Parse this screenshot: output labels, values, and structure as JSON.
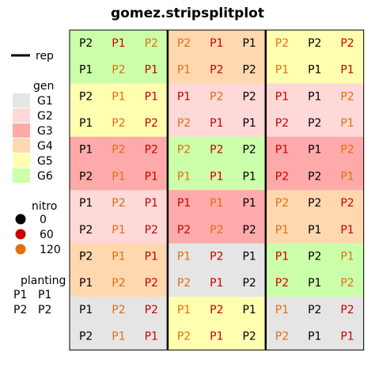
{
  "chart_data": {
    "type": "heatmap",
    "title": "gomez.stripsplitplot",
    "rep_blocks": 3,
    "rows": 12,
    "cols": 9,
    "row_gen": [
      "G6",
      "G6",
      "G5",
      "G5",
      "G3",
      "G3",
      "G2",
      "G2",
      "G4",
      "G4",
      "G1",
      "G1"
    ],
    "col_gen": [
      [
        "G6",
        "G6",
        "G6",
        "G4",
        "G4",
        "G4",
        "G5",
        "G5",
        "G5"
      ],
      [
        "G6",
        "G6",
        "G6",
        "G4",
        "G4",
        "G4",
        "G5",
        "G5",
        "G5"
      ],
      [
        "G5",
        "G5",
        "G5",
        "G2",
        "G2",
        "G2",
        "G2",
        "G2",
        "G2"
      ],
      [
        "G5",
        "G5",
        "G5",
        "G2",
        "G2",
        "G2",
        "G2",
        "G2",
        "G2"
      ],
      [
        "G3",
        "G3",
        "G3",
        "G6",
        "G6",
        "G6",
        "G3",
        "G3",
        "G3"
      ],
      [
        "G3",
        "G3",
        "G3",
        "G6",
        "G6",
        "G6",
        "G3",
        "G3",
        "G3"
      ],
      [
        "G2",
        "G2",
        "G2",
        "G3",
        "G3",
        "G3",
        "G4",
        "G4",
        "G4"
      ],
      [
        "G2",
        "G2",
        "G2",
        "G3",
        "G3",
        "G3",
        "G4",
        "G4",
        "G4"
      ],
      [
        "G4",
        "G4",
        "G4",
        "G1",
        "G1",
        "G1",
        "G6",
        "G6",
        "G6"
      ],
      [
        "G4",
        "G4",
        "G4",
        "G1",
        "G1",
        "G1",
        "G6",
        "G6",
        "G6"
      ],
      [
        "G1",
        "G1",
        "G1",
        "G5",
        "G5",
        "G5",
        "G1",
        "G1",
        "G1"
      ],
      [
        "G1",
        "G1",
        "G1",
        "G5",
        "G5",
        "G5",
        "G1",
        "G1",
        "G1"
      ]
    ],
    "planting": [
      [
        "P2",
        "P1",
        "P2",
        "P2",
        "P1",
        "P1",
        "P2",
        "P2",
        "P2"
      ],
      [
        "P1",
        "P2",
        "P1",
        "P1",
        "P2",
        "P2",
        "P1",
        "P1",
        "P1"
      ],
      [
        "P2",
        "P1",
        "P1",
        "P1",
        "P2",
        "P2",
        "P1",
        "P1",
        "P2"
      ],
      [
        "P1",
        "P2",
        "P2",
        "P2",
        "P1",
        "P1",
        "P2",
        "P2",
        "P1"
      ],
      [
        "P1",
        "P2",
        "P2",
        "P2",
        "P2",
        "P2",
        "P1",
        "P1",
        "P2"
      ],
      [
        "P2",
        "P1",
        "P1",
        "P1",
        "P1",
        "P1",
        "P2",
        "P2",
        "P1"
      ],
      [
        "P1",
        "P2",
        "P1",
        "P1",
        "P1",
        "P1",
        "P2",
        "P2",
        "P2"
      ],
      [
        "P2",
        "P1",
        "P2",
        "P2",
        "P2",
        "P2",
        "P1",
        "P1",
        "P1"
      ],
      [
        "P2",
        "P1",
        "P1",
        "P1",
        "P2",
        "P1",
        "P1",
        "P2",
        "P1"
      ],
      [
        "P1",
        "P2",
        "P2",
        "P2",
        "P1",
        "P2",
        "P2",
        "P1",
        "P2"
      ],
      [
        "P1",
        "P2",
        "P2",
        "P1",
        "P2",
        "P1",
        "P1",
        "P2",
        "P2"
      ],
      [
        "P2",
        "P1",
        "P1",
        "P2",
        "P1",
        "P2",
        "P2",
        "P1",
        "P1"
      ]
    ],
    "nitro": [
      [
        0,
        60,
        120,
        120,
        60,
        0,
        120,
        0,
        60
      ],
      [
        0,
        120,
        60,
        120,
        60,
        0,
        120,
        0,
        60
      ],
      [
        0,
        120,
        60,
        60,
        120,
        0,
        60,
        0,
        120
      ],
      [
        0,
        120,
        60,
        120,
        60,
        0,
        60,
        0,
        120
      ],
      [
        0,
        120,
        60,
        120,
        60,
        0,
        60,
        0,
        120
      ],
      [
        0,
        120,
        60,
        120,
        60,
        0,
        60,
        0,
        120
      ],
      [
        0,
        120,
        60,
        60,
        120,
        0,
        120,
        0,
        60
      ],
      [
        0,
        120,
        60,
        60,
        120,
        0,
        120,
        0,
        60
      ],
      [
        0,
        120,
        60,
        120,
        60,
        0,
        60,
        0,
        120
      ],
      [
        0,
        120,
        60,
        120,
        60,
        0,
        60,
        0,
        120
      ],
      [
        0,
        120,
        60,
        120,
        60,
        0,
        120,
        0,
        60
      ],
      [
        0,
        120,
        60,
        120,
        60,
        0,
        120,
        0,
        60
      ]
    ]
  },
  "legend": {
    "rep": {
      "label": "rep"
    },
    "gen": {
      "title": "gen",
      "items": [
        {
          "label": "G1",
          "color": "#e5e5e5"
        },
        {
          "label": "G2",
          "color": "#ffd8d8"
        },
        {
          "label": "G3",
          "color": "#ffaaaa"
        },
        {
          "label": "G4",
          "color": "#ffd8b0"
        },
        {
          "label": "G5",
          "color": "#ffffb0"
        },
        {
          "label": "G6",
          "color": "#ccffaa"
        }
      ]
    },
    "nitro": {
      "title": "nitro",
      "items": [
        {
          "label": "0",
          "color": "#000000"
        },
        {
          "label": "60",
          "color": "#cc0000"
        },
        {
          "label": "120",
          "color": "#e07010"
        }
      ]
    },
    "planting": {
      "title": "planting",
      "items": [
        {
          "symbol": "P1",
          "label": "P1"
        },
        {
          "symbol": "P2",
          "label": "P2"
        }
      ]
    }
  }
}
